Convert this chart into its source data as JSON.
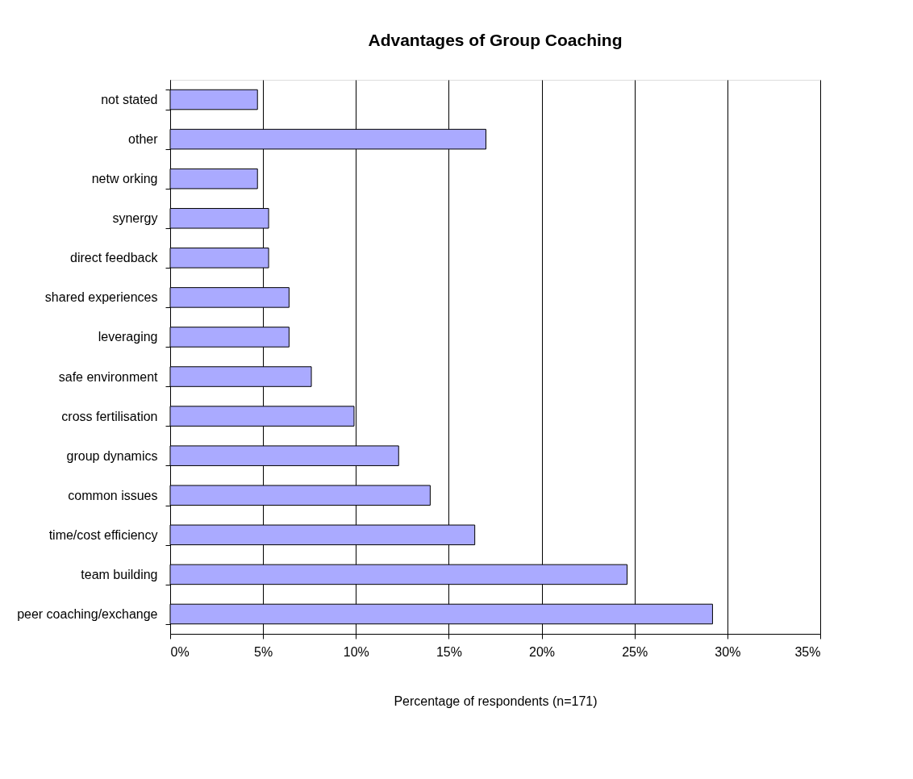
{
  "chart_data": {
    "type": "bar",
    "orientation": "horizontal",
    "title": "Advantages of Group Coaching",
    "xlabel": "Percentage of respondents (n=171)",
    "categories": [
      "not stated",
      "other",
      "netw orking",
      "synergy",
      "direct feedback",
      "shared experiences",
      "leveraging",
      "safe environment",
      "cross fertilisation",
      "group dynamics",
      "common issues",
      "time/cost efficiency",
      "team building",
      "peer coaching/exchange"
    ],
    "values": [
      4.7,
      17.0,
      4.7,
      5.3,
      5.3,
      6.4,
      6.4,
      7.6,
      9.9,
      12.3,
      14.0,
      16.4,
      24.6,
      29.2
    ],
    "color": "#aaaaff",
    "xlim": [
      0,
      35
    ],
    "xticks": [
      {
        "value": 0,
        "label": "0%"
      },
      {
        "value": 5,
        "label": "5%"
      },
      {
        "value": 10,
        "label": "10%"
      },
      {
        "value": 15,
        "label": "15%"
      },
      {
        "value": 20,
        "label": "20%"
      },
      {
        "value": 25,
        "label": "25%"
      },
      {
        "value": 30,
        "label": "30%"
      },
      {
        "value": 35,
        "label": "35%"
      }
    ],
    "grid": "x"
  }
}
